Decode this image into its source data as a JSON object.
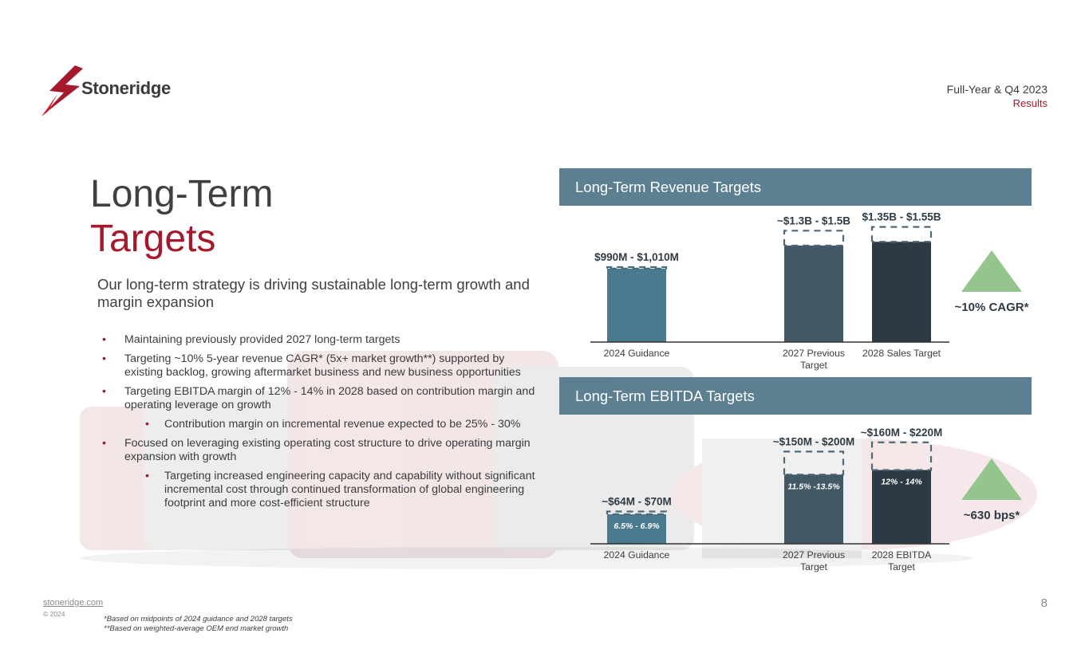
{
  "brand": {
    "name": "Stoneridge",
    "accent": "#a5192d",
    "panel_color": "#5c7f91"
  },
  "header": {
    "line1": "Full-Year & Q4 2023",
    "line2": "Results"
  },
  "title": {
    "line1": "Long-Term",
    "line2": "Targets"
  },
  "subtitle": "Our long-term strategy is driving sustainable long-term growth and margin expansion",
  "bullets": [
    {
      "level": 1,
      "text": "Maintaining previously provided 2027 long-term targets"
    },
    {
      "level": 1,
      "text": "Targeting ~10% 5-year revenue CAGR* (5x+ market growth**) supported by existing backlog, growing aftermarket business and new business opportunities"
    },
    {
      "level": 1,
      "text": "Targeting EBITDA margin of 12% - 14% in 2028 based on contribution margin and operating leverage on growth"
    },
    {
      "level": 2,
      "text": "Contribution margin on incremental revenue expected to be 25% - 30%"
    },
    {
      "level": 1,
      "text": "Focused on leveraging existing operating cost structure to drive operating margin expansion with growth"
    },
    {
      "level": 2,
      "text": "Targeting increased engineering capacity and capability without significant incremental cost through continued transformation of global engineering footprint and more cost-efficient structure"
    }
  ],
  "chart_data": [
    {
      "type": "bar",
      "title": "Long-Term Revenue Targets",
      "unit": "$M",
      "categories": [
        "2024 Guidance",
        "2027 Previous Target",
        "2028 Sales Target"
      ],
      "category_lines": [
        [
          "2024 Guidance"
        ],
        [
          "2027 Previous",
          "Target"
        ],
        [
          "2028 Sales Target"
        ]
      ],
      "ranges": [
        [
          990,
          1010
        ],
        [
          1300,
          1500
        ],
        [
          1350,
          1550
        ]
      ],
      "labels": [
        "$990M - $1,010M",
        "~$1.3B - $1.5B",
        "$1.35B - $1.55B"
      ],
      "inner_labels": [
        "",
        "",
        ""
      ],
      "colors": [
        "#4a7a8e",
        "#445966",
        "#2c3a44"
      ],
      "ylim": [
        0,
        1600
      ],
      "growth_label": "~10% CAGR*"
    },
    {
      "type": "bar",
      "title": "Long-Term EBITDA Targets",
      "unit": "$M",
      "categories": [
        "2024 Guidance",
        "2027 Previous Target",
        "2028 EBITDA Target"
      ],
      "category_lines": [
        [
          "2024 Guidance"
        ],
        [
          "2027 Previous",
          "Target"
        ],
        [
          "2028 EBITDA",
          "Target"
        ]
      ],
      "ranges": [
        [
          64,
          70
        ],
        [
          150,
          200
        ],
        [
          160,
          220
        ]
      ],
      "labels": [
        "~$64M - $70M",
        "~$150M - $200M",
        "~$160M - $220M"
      ],
      "inner_labels": [
        "6.5% - 6.9%",
        "11.5% -13.5%",
        "12% - 14%"
      ],
      "colors": [
        "#4a7a8e",
        "#445966",
        "#2c3a44"
      ],
      "ylim": [
        0,
        230
      ],
      "growth_label": "~630 bps*"
    }
  ],
  "growth_triangle_color": "#93c58c",
  "footer": {
    "site": "stoneridge.com",
    "copyright": "© 2024",
    "footnote1": "*Based on midpoints of 2024 guidance and 2028 targets",
    "footnote2": "**Based on weighted-average OEM end market growth",
    "page": "8"
  }
}
